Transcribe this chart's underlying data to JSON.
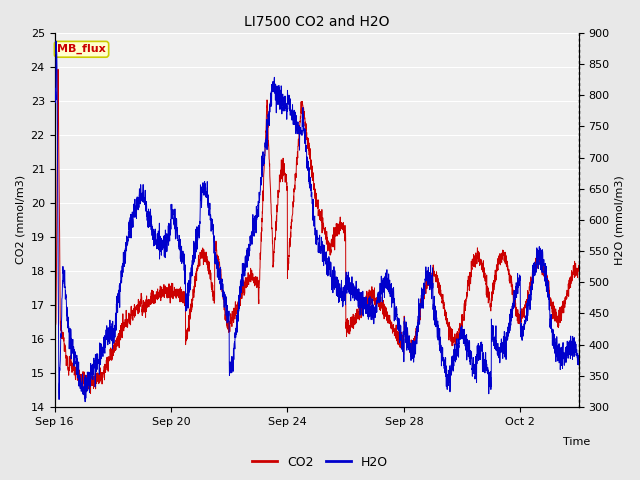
{
  "title": "LI7500 CO2 and H2O",
  "xlabel": "Time",
  "ylabel_left": "CO2 (mmol/m3)",
  "ylabel_right": "H2O (mmol/m3)",
  "ylim_left": [
    14.0,
    25.0
  ],
  "ylim_right": [
    300,
    900
  ],
  "yticks_left": [
    14.0,
    15.0,
    16.0,
    17.0,
    18.0,
    19.0,
    20.0,
    21.0,
    22.0,
    23.0,
    24.0,
    25.0
  ],
  "yticks_right": [
    300,
    350,
    400,
    450,
    500,
    550,
    600,
    650,
    700,
    750,
    800,
    850,
    900
  ],
  "xtick_labels": [
    "Sep 16",
    "Sep 20",
    "Sep 24",
    "Sep 28",
    "Oct 2"
  ],
  "xtick_positions": [
    0,
    4,
    8,
    12,
    16
  ],
  "xlim": [
    0,
    18
  ],
  "co2_color": "#cc0000",
  "h2o_color": "#0000cc",
  "bg_color": "#e8e8e8",
  "plot_bg_color": "#f0f0f0",
  "grid_color": "#ffffff",
  "annotation_text": "MB_flux",
  "annotation_bg": "#ffffcc",
  "annotation_border": "#cccc00",
  "legend_co2": "CO2",
  "legend_h2o": "H2O",
  "figsize": [
    6.4,
    4.8
  ],
  "dpi": 100
}
